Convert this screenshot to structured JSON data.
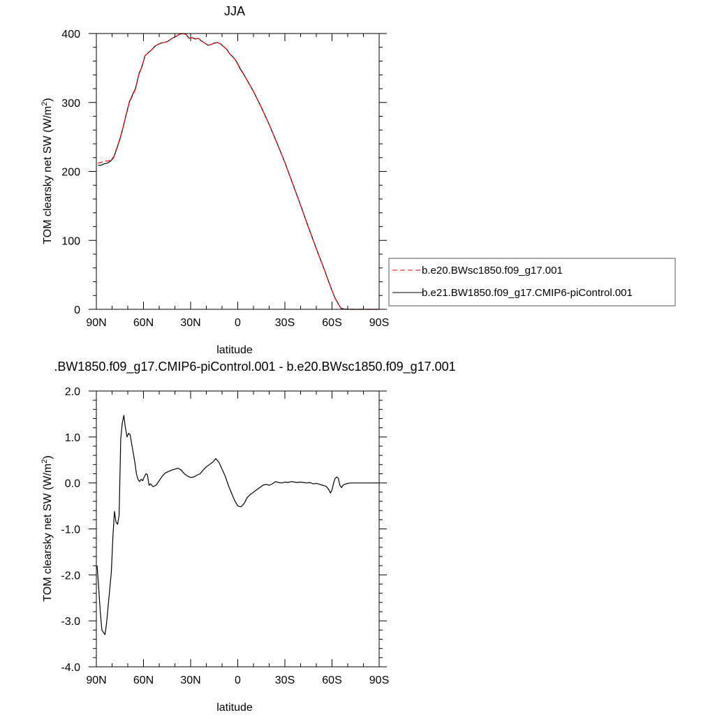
{
  "chart_data": [
    {
      "type": "line",
      "title": "JJA",
      "xlabel": "latitude",
      "ylabel_main": "TOM clearsky net SW (W/m",
      "ylabel_sup": "2",
      "ylabel_close": ")",
      "xlim": [
        90,
        -90
      ],
      "ylim": [
        0,
        400
      ],
      "xticks": [
        90,
        60,
        30,
        0,
        -30,
        -60,
        -90
      ],
      "xtick_labels": [
        "90N",
        "60N",
        "30N",
        "0",
        "30S",
        "60S",
        "90S"
      ],
      "yticks": [
        0,
        100,
        200,
        300,
        400
      ],
      "ytick_labels": [
        "0",
        "100",
        "200",
        "300",
        "400"
      ],
      "grid": false,
      "legend_position": "right, outside plot",
      "series": [
        {
          "name": "b.e20.BWsc1850.f09_g17.001",
          "color": "#ff0000",
          "dash": "dashed",
          "x": [
            89,
            87,
            85,
            83,
            81,
            79,
            77,
            75,
            73,
            71,
            69,
            67,
            65,
            63,
            61,
            59,
            57,
            55,
            53,
            51,
            49,
            47,
            45,
            43,
            41,
            39,
            37,
            35,
            33,
            31,
            29,
            27,
            25,
            23,
            21,
            19,
            17,
            15,
            13,
            11,
            9,
            7,
            5,
            3,
            1,
            -1,
            -5,
            -10,
            -15,
            -20,
            -25,
            -30,
            -35,
            -40,
            -45,
            -50,
            -55,
            -60,
            -62,
            -64,
            -65,
            -66,
            -68,
            -70,
            -72,
            -75,
            -78,
            -80,
            -82,
            -84,
            -86,
            -88,
            -89.5
          ],
          "y": [
            212,
            213,
            215,
            215,
            216,
            221,
            234,
            248,
            264,
            282,
            300,
            310,
            320,
            340,
            352,
            368,
            372,
            376,
            381,
            384,
            386,
            387,
            388,
            391,
            394,
            396,
            399,
            400,
            399,
            393,
            394,
            392,
            393,
            389,
            386,
            383,
            384,
            386,
            387,
            385,
            381,
            377,
            370,
            366,
            360,
            352,
            336,
            316,
            293,
            268,
            241,
            213,
            182,
            151,
            119,
            88,
            58,
            27,
            16,
            8,
            4,
            1,
            0.4,
            0,
            0,
            0,
            0,
            0,
            0,
            0,
            0,
            0,
            0
          ]
        },
        {
          "name": "b.e21.BW1850.f09_g17.CMIP6-piControl.001",
          "color": "#000000",
          "dash": "solid",
          "x": [
            89,
            87,
            85,
            83,
            81,
            79,
            77,
            75,
            73,
            71,
            69,
            67,
            65,
            63,
            61,
            59,
            57,
            55,
            53,
            51,
            49,
            47,
            45,
            43,
            41,
            39,
            37,
            35,
            33,
            31,
            29,
            27,
            25,
            23,
            21,
            19,
            17,
            15,
            13,
            11,
            9,
            7,
            5,
            3,
            1,
            -1,
            -5,
            -10,
            -15,
            -20,
            -25,
            -30,
            -35,
            -40,
            -45,
            -50,
            -55,
            -60,
            -62,
            -64,
            -65,
            -66,
            -68,
            -70,
            -72,
            -75,
            -78,
            -80,
            -82,
            -84,
            -86,
            -88,
            -89.5
          ],
          "y": [
            209,
            209,
            211,
            212,
            215,
            220,
            233,
            247,
            264,
            283,
            301,
            311,
            321,
            341,
            352,
            368,
            372,
            376,
            381,
            384,
            386,
            387,
            388,
            391,
            394,
            396,
            399,
            400,
            399,
            393,
            394,
            392,
            393,
            389,
            386,
            383,
            384,
            386,
            387,
            385,
            381,
            377,
            370,
            366,
            360,
            351,
            336,
            316,
            293,
            268,
            241,
            213,
            182,
            151,
            119,
            88,
            58,
            27,
            16,
            8,
            4,
            1,
            0.4,
            0,
            0,
            0,
            0,
            0,
            0,
            0,
            0,
            0,
            0
          ]
        }
      ]
    },
    {
      "type": "line",
      "title": ".BW1850.f09_g17.CMIP6-piControl.001 - b.e20.BWsc1850.f09_g17.001",
      "xlabel": "latitude",
      "ylabel_main": "TOM clearsky net SW (W/m",
      "ylabel_sup": "2",
      "ylabel_close": ")",
      "xlim": [
        90,
        -90
      ],
      "ylim": [
        -4,
        2
      ],
      "xticks": [
        90,
        60,
        30,
        0,
        -30,
        -60,
        -90
      ],
      "xtick_labels": [
        "90N",
        "60N",
        "30N",
        "0",
        "30S",
        "60S",
        "90S"
      ],
      "yticks": [
        -4,
        -3,
        -2,
        -1,
        0,
        1,
        2
      ],
      "ytick_labels": [
        "-4.0",
        "-3.0",
        "-2.0",
        "-1.0",
        "0.0",
        "1.0",
        "2.0"
      ],
      "grid": false,
      "series": [
        {
          "color": "#000000",
          "dash": "solid",
          "x": [
            89.5,
            88.5,
            87.5,
            86.5,
            85.5,
            84.5,
            83.5,
            82,
            80.5,
            79.5,
            78.5,
            77.5,
            76.5,
            75.5,
            74.5,
            73.5,
            72.5,
            71.5,
            70.5,
            69.5,
            68.5,
            67.5,
            66.5,
            65.5,
            64.5,
            63.5,
            62.5,
            61.5,
            60.5,
            59.5,
            58.5,
            57.5,
            56.5,
            55.5,
            54,
            52,
            50,
            48,
            46,
            44,
            42,
            40,
            38,
            36,
            34,
            32,
            30,
            28,
            26,
            24,
            22,
            20,
            18,
            16,
            14,
            12,
            10,
            8,
            6,
            4,
            2,
            0,
            -2,
            -4,
            -6,
            -8,
            -10,
            -12,
            -14,
            -16,
            -18,
            -20,
            -22,
            -24,
            -26,
            -28,
            -30,
            -32,
            -34,
            -36,
            -38,
            -40,
            -42,
            -44,
            -46,
            -48,
            -50,
            -52,
            -54,
            -56,
            -57,
            -58,
            -59,
            -60,
            -61,
            -62,
            -63,
            -64,
            -65,
            -66,
            -67,
            -68,
            -69,
            -70,
            -72,
            -75,
            -80,
            -85,
            -90
          ],
          "y": [
            -1.8,
            -2.3,
            -2.8,
            -3.2,
            -3.25,
            -3.3,
            -3.05,
            -2.5,
            -1.95,
            -1.2,
            -0.62,
            -0.85,
            -0.9,
            -0.7,
            0.95,
            1.3,
            1.47,
            1.2,
            1.0,
            1.08,
            1.05,
            0.85,
            0.65,
            0.45,
            0.2,
            0.08,
            0.03,
            0.08,
            0.05,
            0.13,
            0.2,
            0.18,
            -0.05,
            -0.02,
            -0.08,
            -0.05,
            0.05,
            0.15,
            0.22,
            0.25,
            0.28,
            0.3,
            0.32,
            0.28,
            0.2,
            0.15,
            0.12,
            0.13,
            0.17,
            0.2,
            0.28,
            0.35,
            0.4,
            0.45,
            0.53,
            0.45,
            0.3,
            0.15,
            -0.05,
            -0.22,
            -0.38,
            -0.5,
            -0.52,
            -0.45,
            -0.32,
            -0.25,
            -0.2,
            -0.15,
            -0.1,
            -0.05,
            -0.03,
            -0.05,
            -0.02,
            0.03,
            0.01,
            0.0,
            0.02,
            0.01,
            0.03,
            0.02,
            0.01,
            0.02,
            0.01,
            0.0,
            0.01,
            -0.02,
            -0.01,
            -0.03,
            -0.05,
            -0.07,
            -0.1,
            -0.15,
            -0.22,
            -0.15,
            0.0,
            0.1,
            0.13,
            0.1,
            -0.05,
            -0.1,
            -0.05,
            -0.03,
            -0.02,
            -0.01,
            0.0,
            0.0,
            0.0,
            0.0,
            0.0
          ]
        }
      ]
    }
  ]
}
